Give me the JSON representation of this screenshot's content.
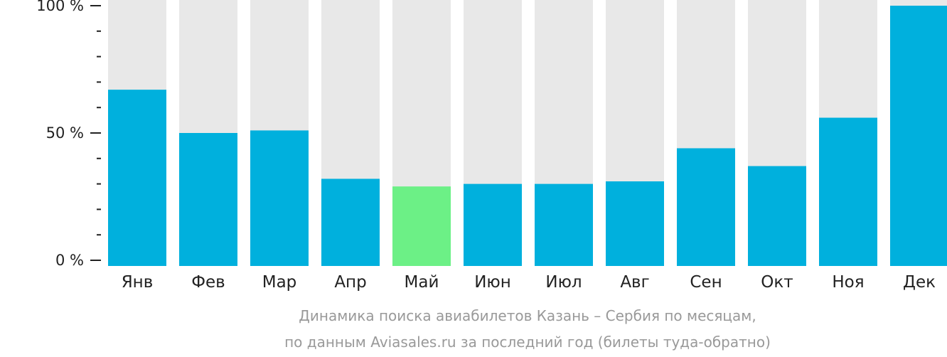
{
  "chart_data": {
    "type": "bar",
    "categories": [
      "Янв",
      "Фев",
      "Мар",
      "Апр",
      "Май",
      "Июн",
      "Июл",
      "Авг",
      "Сен",
      "Окт",
      "Ноя",
      "Дек"
    ],
    "values": [
      67,
      50,
      51,
      32,
      29,
      30,
      30,
      31,
      44,
      37,
      56,
      100
    ],
    "highlight_index": 4,
    "ylim": [
      0,
      100
    ],
    "yticks": [
      {
        "value": 0,
        "label": "0 %"
      },
      {
        "value": 50,
        "label": "50 %"
      },
      {
        "value": 100,
        "label": "100 %"
      }
    ],
    "minor_tick_step": 10,
    "caption": [
      "Динамика поиска авиабилетов Казань – Сербия по месяцам,",
      "по данным Aviasales.ru за последний год (билеты туда-обратно)"
    ],
    "colors": {
      "bar": "#00b0dd",
      "highlight": "#6cf086",
      "background": "#e8e8e8",
      "axis": "#222222",
      "caption": "#999999"
    }
  }
}
